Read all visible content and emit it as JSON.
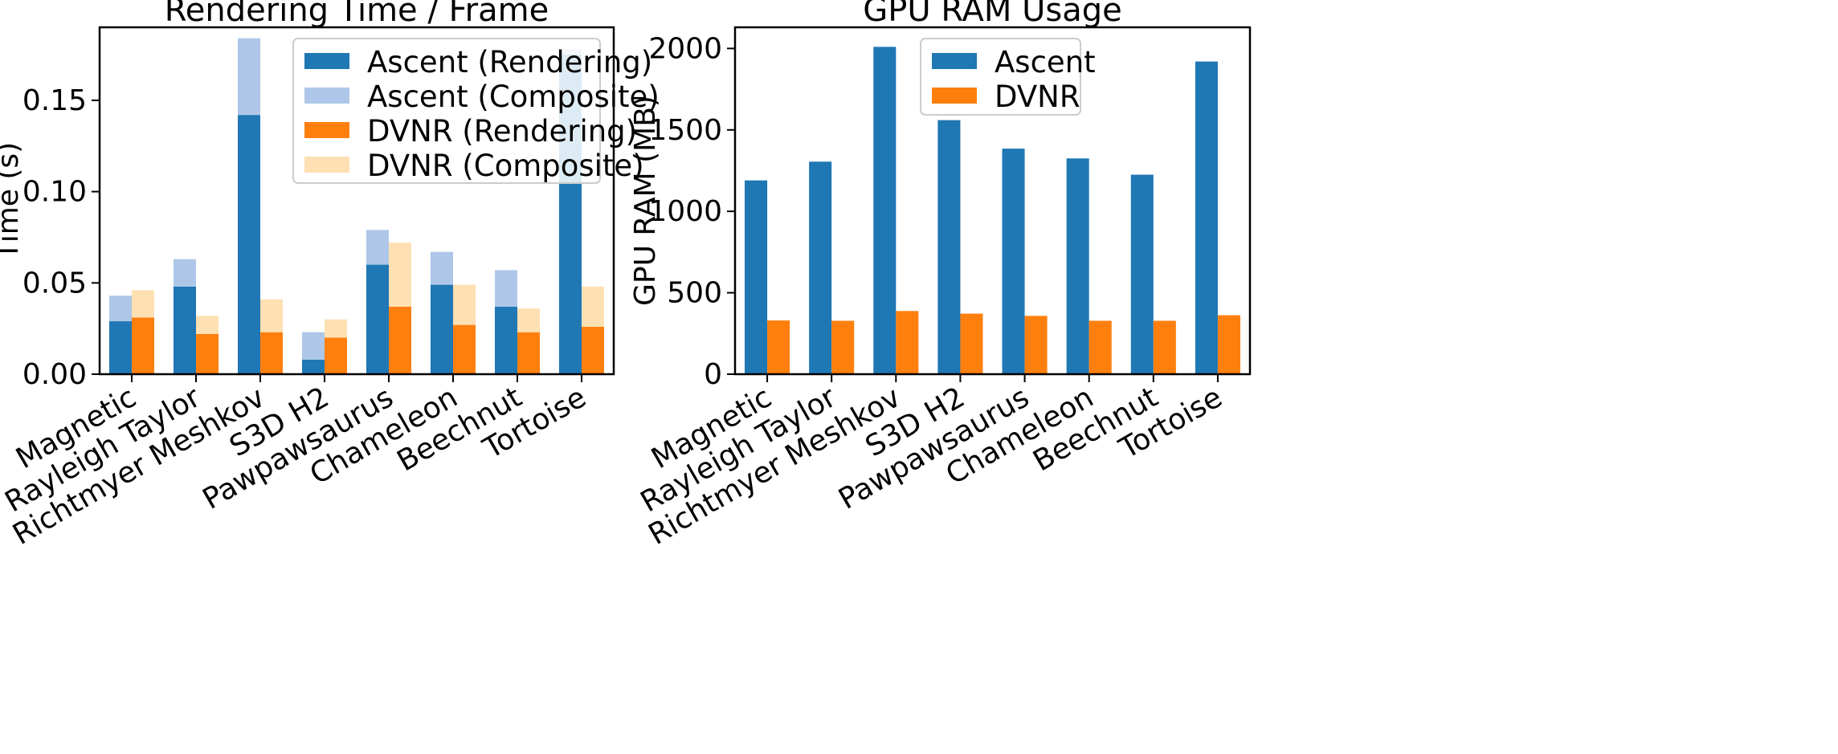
{
  "chart_data": [
    {
      "type": "bar",
      "stacked": true,
      "title": "Rendering Time / Frame",
      "xlabel": "",
      "ylabel": "Time (s)",
      "ylim": [
        0,
        0.19
      ],
      "yticks": [
        "0.00",
        "0.05",
        "0.10",
        "0.15"
      ],
      "ytick_values": [
        0,
        0.05,
        0.1,
        0.15
      ],
      "categories": [
        "Magnetic",
        "Rayleigh Taylor",
        "Richtmyer Meshkov",
        "S3D H2",
        "Pawpawsaurus",
        "Chameleon",
        "Beechnut",
        "Tortoise"
      ],
      "series": [
        {
          "name": "Ascent (Rendering)",
          "group": "Ascent",
          "part": "rendering",
          "color": "#1f77b4",
          "values": [
            0.029,
            0.048,
            0.142,
            0.008,
            0.06,
            0.049,
            0.037,
            0.175
          ]
        },
        {
          "name": "Ascent (Composite)",
          "group": "Ascent",
          "part": "composite",
          "color": "#aec7e8",
          "values": [
            0.014,
            0.015,
            0.042,
            0.015,
            0.019,
            0.018,
            0.02,
            0.003
          ]
        },
        {
          "name": "DVNR (Rendering)",
          "group": "DVNR",
          "part": "rendering",
          "color": "#ff7f0e",
          "values": [
            0.031,
            0.022,
            0.023,
            0.02,
            0.037,
            0.027,
            0.023,
            0.026
          ]
        },
        {
          "name": "DVNR (Composite)",
          "group": "DVNR",
          "part": "composite",
          "color": "#ffe0b2",
          "values": [
            0.015,
            0.01,
            0.018,
            0.01,
            0.035,
            0.022,
            0.013,
            0.022
          ]
        }
      ],
      "legend_position": "top-right"
    },
    {
      "type": "bar",
      "stacked": false,
      "title": "GPU RAM Usage",
      "xlabel": "",
      "ylabel": "GPU RAM (MB)",
      "ylim": [
        0,
        2130
      ],
      "yticks": [
        "0",
        "500",
        "1000",
        "1500",
        "2000"
      ],
      "ytick_values": [
        0,
        500,
        1000,
        1500,
        2000
      ],
      "categories": [
        "Magnetic",
        "Rayleigh Taylor",
        "Richtmyer Meshkov",
        "S3D H2",
        "Pawpawsaurus",
        "Chameleon",
        "Beechnut",
        "Tortoise"
      ],
      "series": [
        {
          "name": "Ascent",
          "color": "#1f77b4",
          "values": [
            1190,
            1305,
            2010,
            1560,
            1385,
            1325,
            1225,
            1920
          ]
        },
        {
          "name": "DVNR",
          "color": "#ff7f0e",
          "values": [
            330,
            328,
            388,
            372,
            358,
            328,
            328,
            362
          ]
        }
      ],
      "legend_position": "top-left"
    }
  ]
}
